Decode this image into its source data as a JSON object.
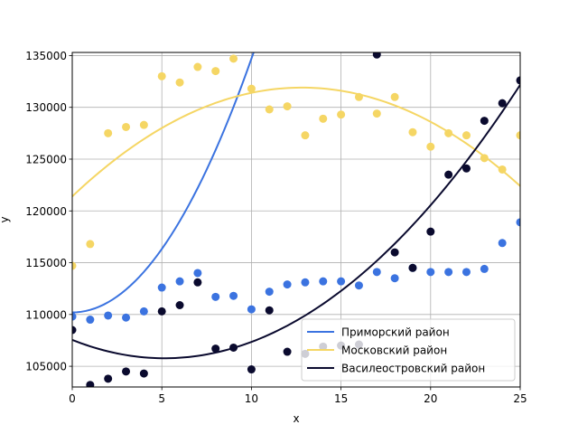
{
  "chart_data": {
    "type": "scatter",
    "title": "",
    "xlabel": "x",
    "ylabel": "y",
    "xlim": [
      0,
      25
    ],
    "ylim": [
      103000,
      135300
    ],
    "xticks": [
      0,
      5,
      10,
      15,
      20,
      25
    ],
    "yticks": [
      105000,
      110000,
      115000,
      120000,
      125000,
      130000,
      135000
    ],
    "grid": true,
    "legend_position": "lower-right",
    "series": [
      {
        "name": "Приморский район",
        "color": "#3b73e0",
        "points": [
          [
            0,
            109800
          ],
          [
            1,
            109500
          ],
          [
            2,
            109900
          ],
          [
            3,
            109700
          ],
          [
            4,
            110300
          ],
          [
            5,
            112600
          ],
          [
            6,
            113200
          ],
          [
            7,
            114000
          ],
          [
            8,
            111700
          ],
          [
            9,
            111800
          ],
          [
            10,
            110500
          ],
          [
            11,
            112200
          ],
          [
            12,
            112900
          ],
          [
            13,
            113100
          ],
          [
            14,
            113200
          ],
          [
            15,
            113200
          ],
          [
            16,
            112800
          ],
          [
            17,
            114100
          ],
          [
            18,
            113500
          ],
          [
            19,
            114500
          ],
          [
            20,
            114100
          ],
          [
            21,
            114100
          ],
          [
            22,
            114100
          ],
          [
            23,
            114400
          ],
          [
            24,
            116900
          ],
          [
            25,
            118900
          ]
        ],
        "fit": [
          110200,
          0.0,
          245.0
        ]
      },
      {
        "name": "Московский район",
        "color": "#f5d664",
        "points": [
          [
            0,
            114700
          ],
          [
            1,
            116800
          ],
          [
            2,
            127500
          ],
          [
            3,
            128100
          ],
          [
            4,
            128300
          ],
          [
            5,
            133000
          ],
          [
            6,
            132400
          ],
          [
            7,
            133900
          ],
          [
            8,
            133500
          ],
          [
            9,
            134700
          ],
          [
            10,
            131800
          ],
          [
            11,
            129800
          ],
          [
            12,
            130100
          ],
          [
            13,
            127300
          ],
          [
            14,
            128900
          ],
          [
            15,
            129300
          ],
          [
            16,
            131000
          ],
          [
            17,
            129400
          ],
          [
            18,
            131000
          ],
          [
            19,
            127600
          ],
          [
            20,
            126200
          ],
          [
            21,
            127500
          ],
          [
            22,
            127300
          ],
          [
            23,
            125100
          ],
          [
            24,
            124000
          ],
          [
            25,
            127300
          ]
        ],
        "fit": [
          121400,
          1640.0,
          -64.0
        ]
      },
      {
        "name": "Василеостровский район",
        "color": "#0a0a2e",
        "points": [
          [
            0,
            108500
          ],
          [
            1,
            103200
          ],
          [
            2,
            103800
          ],
          [
            3,
            104500
          ],
          [
            4,
            104300
          ],
          [
            5,
            110300
          ],
          [
            6,
            110900
          ],
          [
            7,
            113100
          ],
          [
            8,
            106700
          ],
          [
            9,
            106800
          ],
          [
            10,
            104700
          ],
          [
            11,
            110400
          ],
          [
            12,
            106400
          ],
          [
            13,
            106200
          ],
          [
            14,
            106900
          ],
          [
            15,
            107000
          ],
          [
            16,
            107100
          ],
          [
            17,
            135100
          ],
          [
            18,
            116000
          ],
          [
            19,
            114500
          ],
          [
            20,
            118000
          ],
          [
            21,
            123500
          ],
          [
            22,
            124100
          ],
          [
            23,
            128700
          ],
          [
            24,
            130400
          ],
          [
            25,
            132600
          ]
        ],
        "fit": [
          107550,
          -690.0,
          67.0
        ]
      }
    ]
  }
}
